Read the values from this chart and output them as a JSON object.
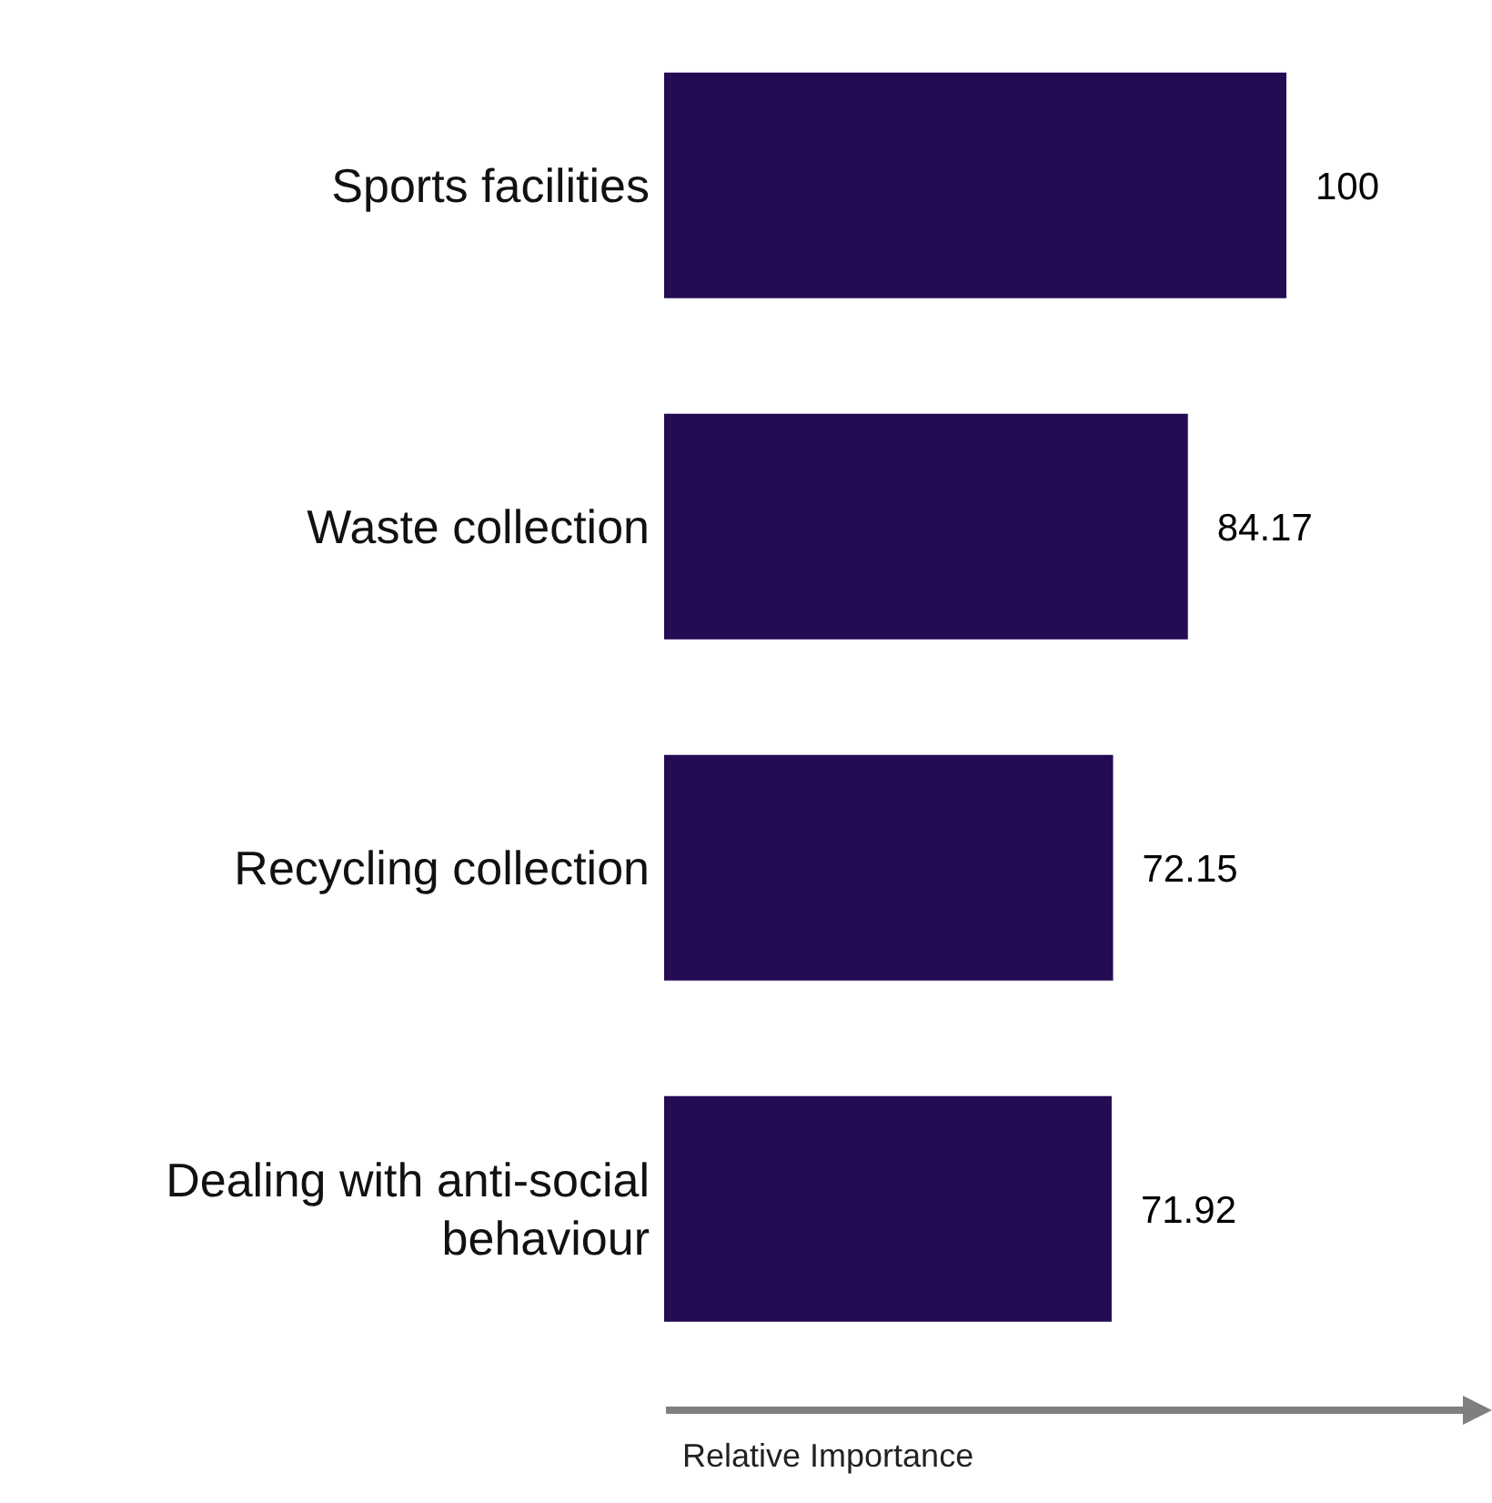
{
  "chart_data": {
    "type": "bar",
    "orientation": "horizontal",
    "categories": [
      "Sports facilities",
      "Waste collection",
      "Recycling collection",
      "Dealing with anti-social behaviour"
    ],
    "values": [
      100,
      84.17,
      72.15,
      71.92
    ],
    "color": "#250a54",
    "xlim": [
      0,
      100
    ],
    "xlabel": "Relative Importance",
    "data_labels": true,
    "tick_labels": "y",
    "grid": false,
    "legend": false
  }
}
